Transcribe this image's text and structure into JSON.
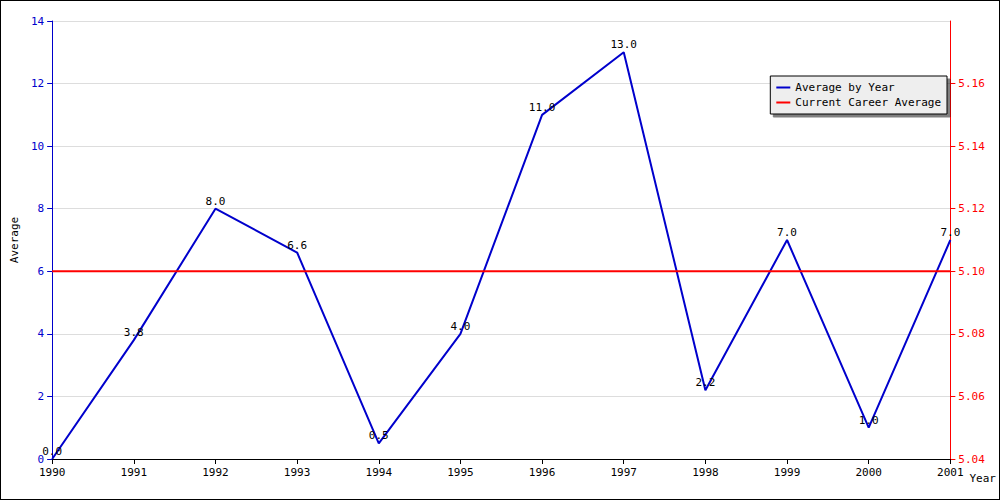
{
  "chart_data": {
    "type": "line",
    "x_label": "Year",
    "y_label": "Average",
    "xlim": [
      1990,
      2001
    ],
    "xticks": [
      1990,
      1991,
      1992,
      1993,
      1994,
      1995,
      1996,
      1997,
      1998,
      1999,
      2000,
      2001
    ],
    "ylim": [
      0,
      14
    ],
    "yticks": [
      0,
      2,
      4,
      6,
      8,
      10,
      12,
      14
    ],
    "y2lim": [
      5.04,
      5.18
    ],
    "y2ticks": [
      5.04,
      5.06,
      5.08,
      {
        "value": 5.1,
        "label": "5.10"
      },
      5.12,
      5.14,
      5.16
    ],
    "grid": true,
    "legend": "top-right",
    "series": [
      {
        "name": "Average by Year",
        "color": "#0000cc",
        "line_style": "solid",
        "data_labels": true,
        "x": [
          1990,
          1991,
          1992,
          1993,
          1994,
          1995,
          1996,
          1997,
          1998,
          1999,
          2000,
          2001
        ],
        "values": [
          0,
          3.8,
          8,
          6.6,
          0.5,
          4,
          11,
          13,
          2.2,
          7,
          1,
          7
        ],
        "value_labels": [
          "0.0",
          "3.8",
          "8.0",
          "6.6",
          "0.5",
          "4.0",
          "11.0",
          "13.0",
          "2.2",
          "7.0",
          "1.0",
          "7.0"
        ]
      },
      {
        "name": "Current Career Average",
        "color": "#ff0000",
        "line_style": "solid",
        "axis": "y2",
        "x": [
          1990,
          2001
        ],
        "values": [
          5.1,
          5.1
        ]
      }
    ]
  }
}
